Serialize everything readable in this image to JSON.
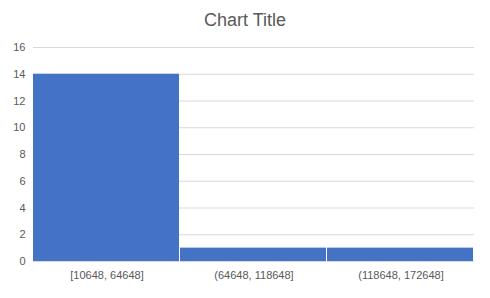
{
  "chart_data": {
    "type": "bar",
    "title": "Chart Title",
    "categories": [
      "[10648, 64648]",
      "(64648, 118648]",
      "(118648, 172648]"
    ],
    "values": [
      14,
      1,
      1
    ],
    "color": "#4472c4",
    "ylim": [
      0,
      16
    ],
    "yticks": [
      0,
      2,
      4,
      6,
      8,
      10,
      12,
      14,
      16
    ],
    "grid": true
  }
}
